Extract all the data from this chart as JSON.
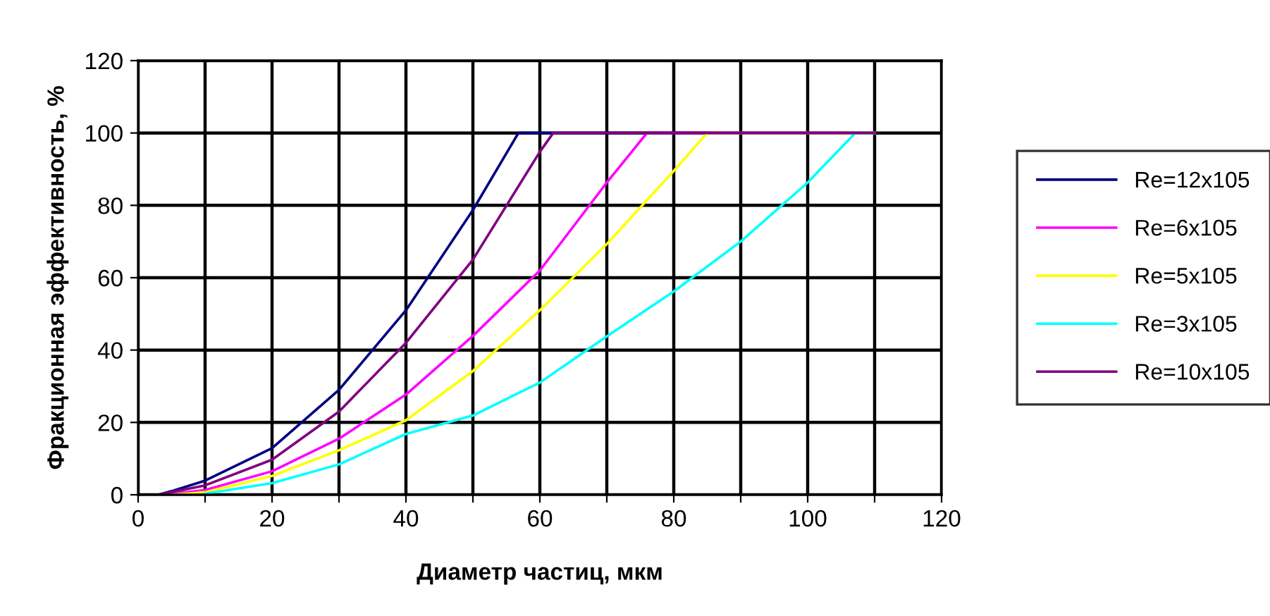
{
  "chart_data": {
    "type": "line",
    "xlabel": "Диаметр частиц, мкм",
    "ylabel": "Фракционная эффективность, %",
    "xlim": [
      0,
      120
    ],
    "ylim": [
      0,
      120
    ],
    "xticks": [
      0,
      {
        "value": 10,
        "label": null
      },
      20,
      {
        "value": 30,
        "label": null
      },
      40,
      {
        "value": 50,
        "label": null
      },
      60,
      {
        "value": 70,
        "label": null
      },
      80,
      {
        "value": 90,
        "label": null
      },
      100,
      {
        "value": 110,
        "label": null
      },
      120
    ],
    "yticks": [
      0,
      20,
      40,
      60,
      80,
      100,
      120
    ],
    "grid": true,
    "legend": "right",
    "marker": "none",
    "line_style": "solid",
    "series": [
      {
        "name": "Re=12x105",
        "color": "#000080",
        "x": [
          3,
          5,
          10,
          20,
          30,
          40,
          50,
          56.8,
          110
        ],
        "values": [
          0,
          1,
          3.9,
          12.9,
          29,
          51,
          78.7,
          100,
          100
        ]
      },
      {
        "name": "Re=6x105",
        "color": "#ff00ff",
        "x": [
          4,
          10,
          20,
          30,
          40,
          50,
          60,
          70,
          76,
          110
        ],
        "values": [
          0,
          1.3,
          6.5,
          15.5,
          27.7,
          43.9,
          62,
          86.3,
          100,
          100
        ]
      },
      {
        "name": "Re=5x105",
        "color": "#ffff00",
        "x": [
          5,
          10,
          20,
          30,
          40,
          50,
          60,
          70,
          80,
          85,
          110
        ],
        "values": [
          0,
          0.7,
          5.2,
          12.3,
          20.6,
          34.2,
          51,
          69.3,
          89.5,
          100,
          100
        ]
      },
      {
        "name": "Re=3x105",
        "color": "#00ffff",
        "x": [
          10,
          20,
          30,
          40,
          50,
          60,
          70,
          80,
          90,
          100,
          107.1,
          110
        ],
        "values": [
          0.3,
          3.2,
          8.4,
          16.8,
          21.9,
          31,
          43.8,
          56.2,
          70,
          86.3,
          100,
          100
        ]
      },
      {
        "name": "Re=10x105",
        "color": "#800080",
        "x": [
          3,
          10,
          20,
          30,
          40,
          50,
          60,
          62,
          110
        ],
        "values": [
          0,
          2.6,
          9.7,
          23,
          42,
          65,
          94.8,
          100,
          100
        ]
      }
    ]
  }
}
